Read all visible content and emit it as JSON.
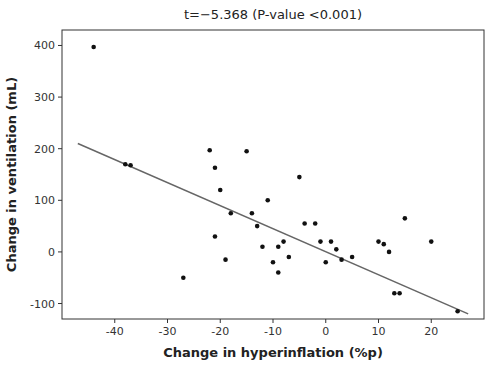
{
  "chart_data": {
    "type": "scatter",
    "title": "t=−5.368 (P-value <0.001)",
    "x_label": "Change in hyperinflation (%p)",
    "y_label": "Change in ventilation (mL)",
    "x": [
      -44,
      -38,
      -37,
      -27,
      -22,
      -21,
      -21,
      -20,
      -19,
      -18,
      -15,
      -14,
      -13,
      -12,
      -11,
      -10,
      -9,
      -9,
      -8,
      -7,
      -5,
      -4,
      -2,
      -1,
      0,
      1,
      2,
      3,
      5,
      10,
      11,
      12,
      13,
      14,
      15,
      20,
      25
    ],
    "values": [
      397,
      170,
      168,
      -50,
      197,
      163,
      30,
      120,
      -15,
      75,
      195,
      75,
      50,
      10,
      100,
      -20,
      -40,
      10,
      20,
      -10,
      145,
      55,
      55,
      20,
      -20,
      20,
      5,
      -15,
      -10,
      20,
      15,
      0,
      -80,
      -80,
      65,
      20,
      -115
    ],
    "color": "#111111",
    "trend_line": {
      "x": [
        -47,
        27
      ],
      "values": [
        210,
        -120
      ],
      "color": "#666666"
    },
    "xlim": [
      -50,
      30
    ],
    "ylim": [
      -130,
      430
    ],
    "xticks": [
      -40,
      -30,
      -20,
      -10,
      0,
      10,
      20
    ],
    "yticks": [
      -100,
      0,
      100,
      200,
      300,
      400
    ],
    "grid": false
  }
}
